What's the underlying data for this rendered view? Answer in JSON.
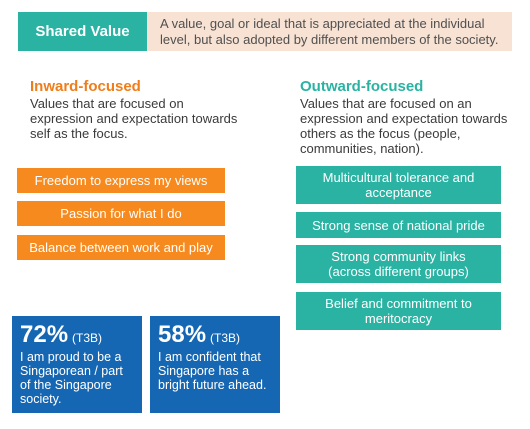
{
  "header": {
    "badge": "Shared Value",
    "definition": "A value, goal or ideal that is appreciated at the individual level, but also adopted by different members of the society."
  },
  "inward": {
    "title": "Inward-focused",
    "description": "Values that are focused on expression and expectation towards self as the focus.",
    "items": [
      "Freedom to express my views",
      "Passion for what I do",
      "Balance between work and play"
    ]
  },
  "outward": {
    "title": "Outward-focused",
    "description": "Values that are focused on an expression and expectation towards others as the focus (people, communities, nation).",
    "items": [
      "Multicultural tolerance and acceptance",
      "Strong sense of national pride",
      "Strong community links (across different groups)",
      "Belief and commitment to meritocracy"
    ]
  },
  "stats": [
    {
      "value": "72%",
      "tag": "(T3B)",
      "description": "I am proud to be a Singaporean / part of the Singapore society."
    },
    {
      "value": "58%",
      "tag": "(T3B)",
      "description": "I am confident that Singapore has a bright future ahead."
    }
  ],
  "colors": {
    "teal": "#2ab3a3",
    "orange": "#f68a1e",
    "peach": "#f7e2d3",
    "blue": "#1667b3"
  }
}
